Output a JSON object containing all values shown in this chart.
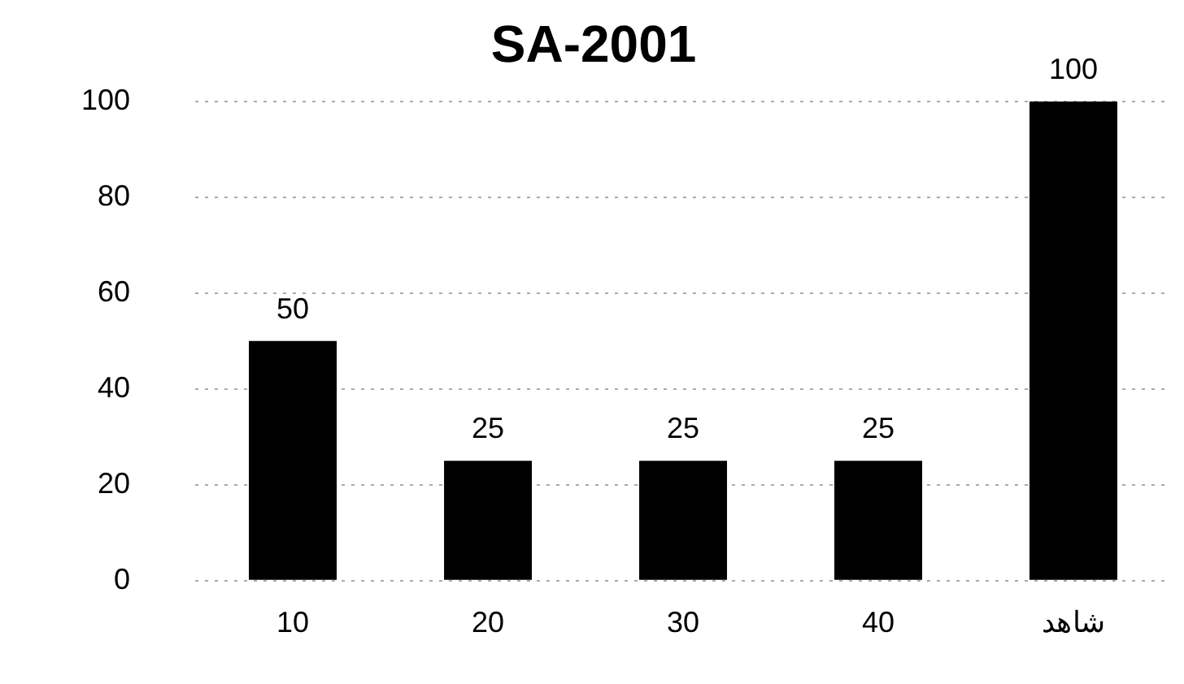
{
  "chart_data": {
    "type": "bar",
    "title": "SA-2001",
    "categories": [
      "10",
      "20",
      "30",
      "40",
      "شاهد"
    ],
    "values": [
      50,
      25,
      25,
      25,
      100
    ],
    "color": "#000000",
    "ylim": [
      0,
      100
    ],
    "yticks": [
      0,
      20,
      40,
      60,
      80,
      100
    ],
    "grid": "y",
    "data_labels": true
  }
}
